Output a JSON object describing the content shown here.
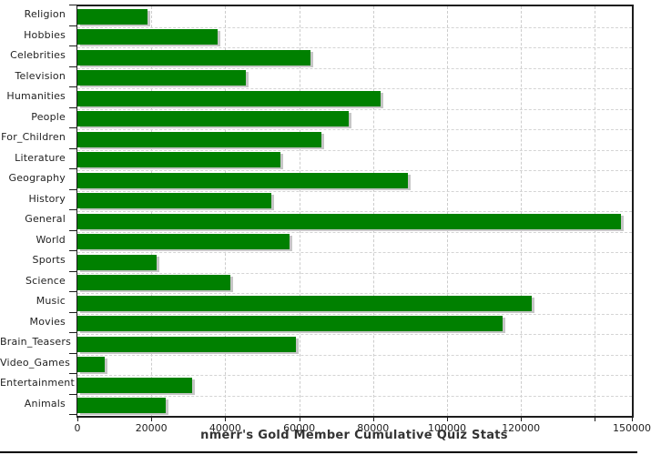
{
  "chart_data": {
    "type": "bar",
    "orientation": "horizontal",
    "title": "nmerr's Gold Member Cumulative Quiz Stats",
    "categories": [
      "Religion",
      "Hobbies",
      "Celebrities",
      "Television",
      "Humanities",
      "People",
      "For_Children",
      "Literature",
      "Geography",
      "History",
      "General",
      "World",
      "Sports",
      "Science",
      "Music",
      "Movies",
      "Brain_Teasers",
      "Video_Games",
      "Entertainment",
      "Animals"
    ],
    "values": [
      19000,
      38000,
      63000,
      45500,
      82000,
      73500,
      66000,
      55000,
      89500,
      52500,
      147000,
      57500,
      21500,
      41500,
      123000,
      115000,
      59000,
      7500,
      31000,
      24000
    ],
    "xlabel": "",
    "ylabel": "",
    "xlim": [
      0,
      150000
    ],
    "x_ticks": [
      {
        "value": 0,
        "label": "0"
      },
      {
        "value": 20000,
        "label": "20000"
      },
      {
        "value": 40000,
        "label": "40000"
      },
      {
        "value": 60000,
        "label": "60000"
      },
      {
        "value": 80000,
        "label": "80000"
      },
      {
        "value": 100000,
        "label": "100000"
      },
      {
        "value": 120000,
        "label": "120000"
      },
      {
        "value": 140000,
        "label": ""
      },
      {
        "value": 150000,
        "label": "150000"
      }
    ],
    "grid": true,
    "legend_position": "none",
    "bar_color": "#008000",
    "shadow_color": "#c6c6c6",
    "grid_color": "#cccccc",
    "axis_color": "#1c1c1c",
    "text_color": "#222222",
    "title_color": "#333333"
  }
}
